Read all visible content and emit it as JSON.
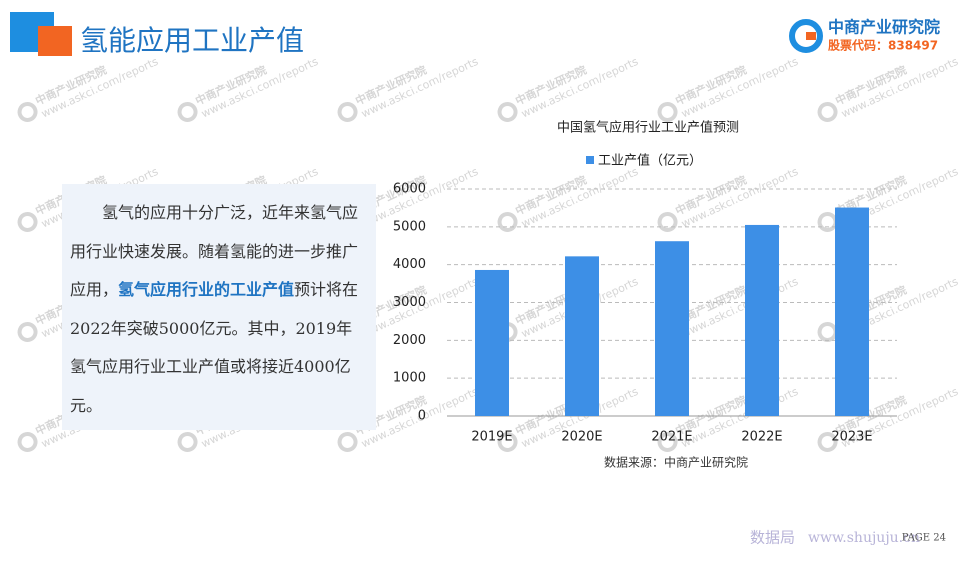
{
  "header": {
    "title": "氢能应用工业产值",
    "logo_name": "中商产业研究院",
    "logo_code": "股票代码：838497"
  },
  "paragraph": {
    "parts": [
      "氢气的应用十分广泛，近年来氢气应用行业快速发展。随着氢能的进一步推广应用，",
      "氢气应用行业的工业产值",
      "预计将在2022年突破5000亿元。其中，2019年氢气应用行业工业产值或将接近4000亿元。"
    ]
  },
  "watermark": {
    "name": "中商产业研究院",
    "url": "www.askci.com/reports"
  },
  "footer": {
    "page": "PAGE 24",
    "site_name": "数据局",
    "site_url": "www.shujuju.cn"
  },
  "chart_data": {
    "type": "bar",
    "title": "中国氢气应用行业工业产值预测",
    "categories": [
      "2019E",
      "2020E",
      "2021E",
      "2022E",
      "2023E"
    ],
    "series": [
      {
        "name": "工业产值（亿元）",
        "color": "#3d8fe6",
        "values": [
          3860,
          4220,
          4620,
          5050,
          5510
        ]
      }
    ],
    "ylim": [
      0,
      6000
    ],
    "yticks": [
      0,
      1000,
      2000,
      3000,
      4000,
      5000,
      6000
    ],
    "grid": true,
    "source": "数据来源：中商产业研究院"
  }
}
